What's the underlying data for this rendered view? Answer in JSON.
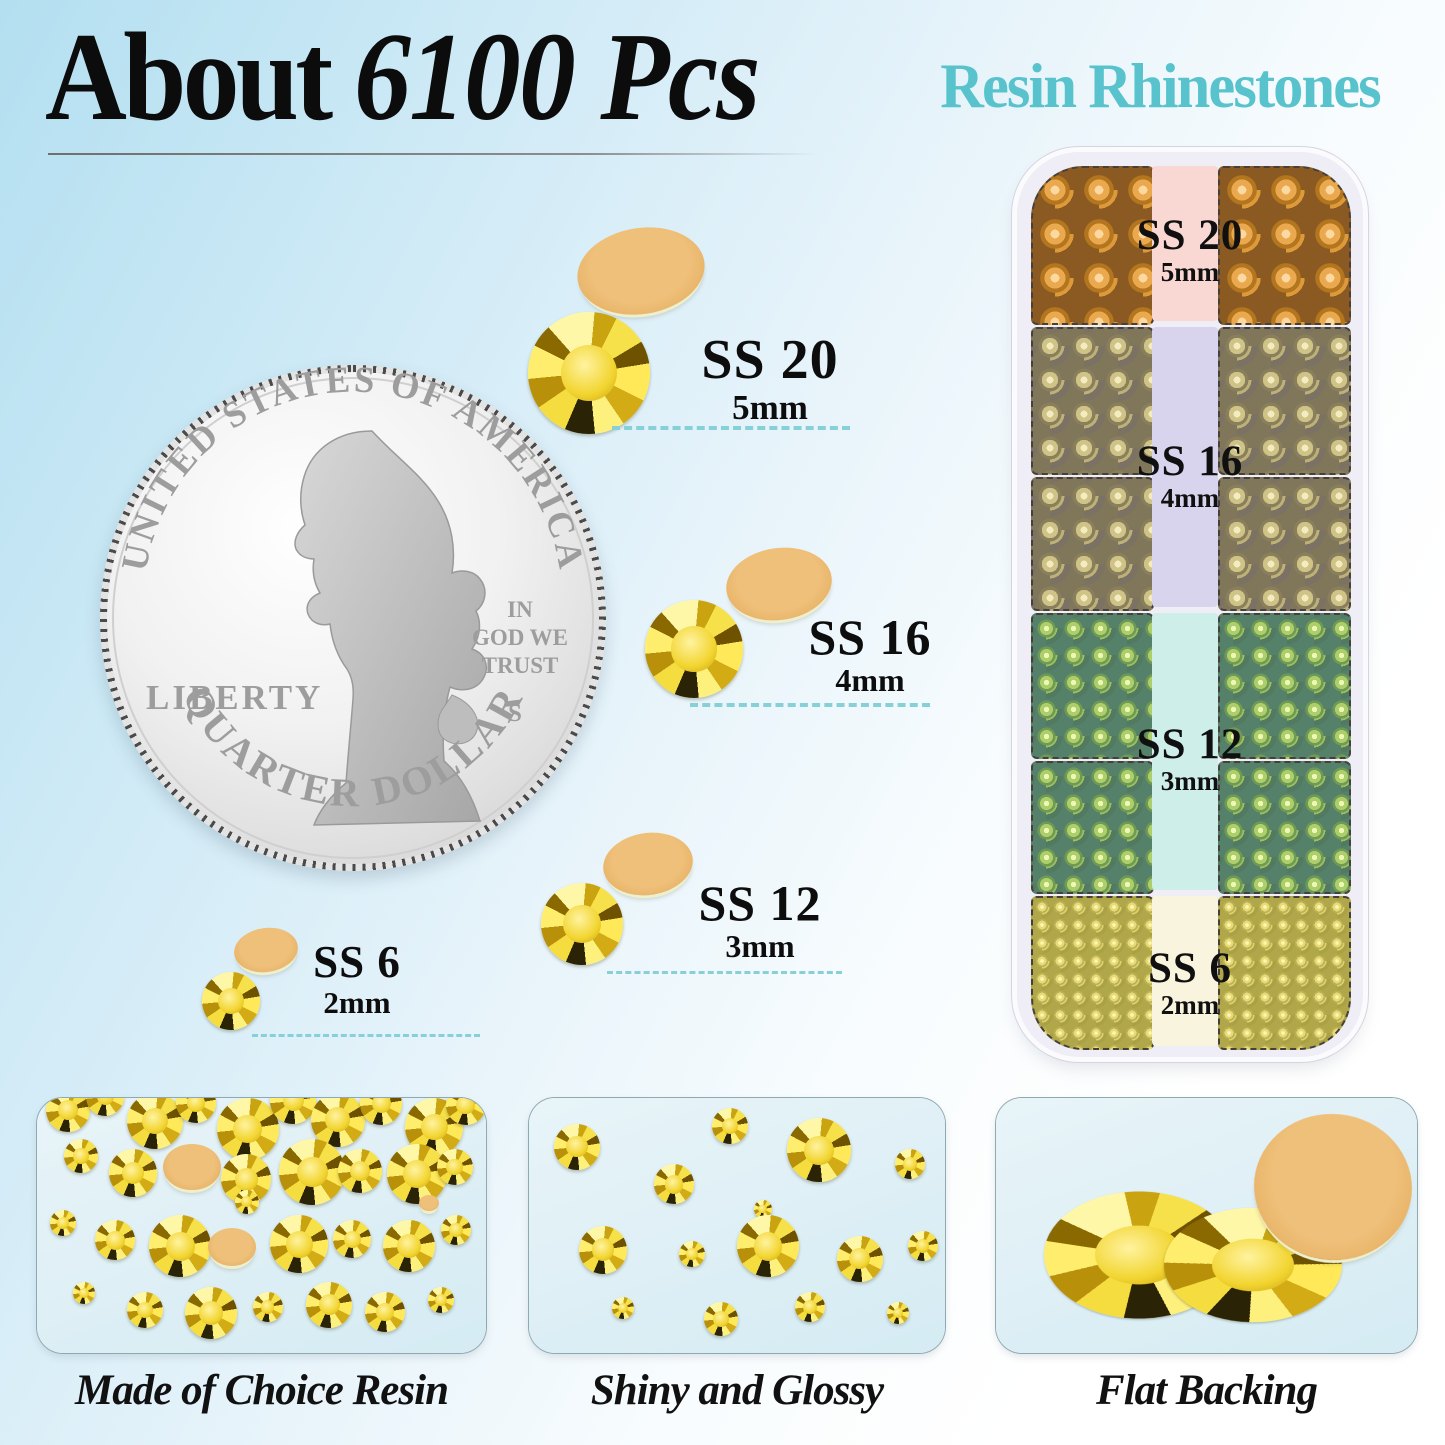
{
  "header": {
    "title_about": "About",
    "title_count": "6100 Pcs",
    "subtitle": "Resin Rhinestones"
  },
  "colors": {
    "accent_teal": "#58c3cd",
    "dash_teal": "#85d1d7",
    "gold_stone": "#f2d42e",
    "flat_back_tan": "#e7b266"
  },
  "coin": {
    "top_text": "UNITED STATES OF AMERICA",
    "liberty": "LIBERTY",
    "motto_line1": "IN",
    "motto_line2": "GOD WE",
    "motto_line3": "TRUST",
    "mint_mark": "S",
    "bottom_text": "QUARTER DOLLAR"
  },
  "sizes": [
    {
      "label": "SS 20",
      "mm": "5mm"
    },
    {
      "label": "SS 16",
      "mm": "4mm"
    },
    {
      "label": "SS 12",
      "mm": "3mm"
    },
    {
      "label": "SS 6",
      "mm": "2mm"
    }
  ],
  "case": {
    "sections": [
      {
        "label": "SS 20",
        "mm": "5mm",
        "strip_color": "#f9d7d3"
      },
      {
        "label": "SS 16",
        "mm": "4mm",
        "strip_color": "#d9d4ee"
      },
      {
        "label": "SS 12",
        "mm": "3mm",
        "strip_color": "#cdeee9"
      },
      {
        "label": "SS 6",
        "mm": "2mm",
        "strip_color": "#f8f4dd"
      }
    ]
  },
  "features": [
    {
      "caption": "Made of Choice Resin"
    },
    {
      "caption": "Shiny and Glossy"
    },
    {
      "caption": "Flat Backing"
    }
  ]
}
